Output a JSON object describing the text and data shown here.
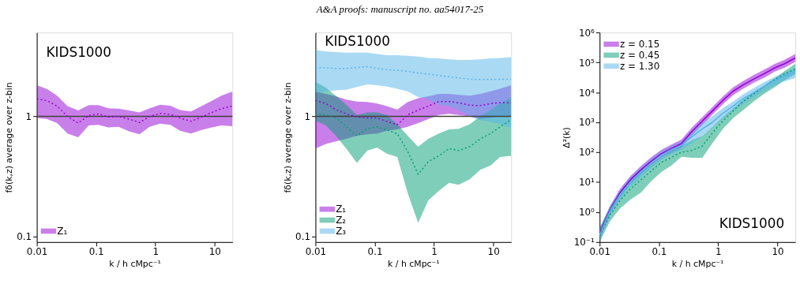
{
  "chart_data": [
    {
      "type": "line",
      "x": [
        0.01,
        0.015,
        0.022,
        0.033,
        0.05,
        0.075,
        0.11,
        0.16,
        0.24,
        0.36,
        0.54,
        0.8,
        1.2,
        1.8,
        2.6,
        4,
        6,
        9,
        13,
        20
      ],
      "series": [
        {
          "name": "Z₁",
          "color": "#9400d3",
          "values": [
            1.4,
            1.35,
            1.22,
            1.0,
            0.88,
            1.02,
            1.05,
            0.99,
            1.0,
            0.95,
            0.89,
            1.0,
            1.06,
            1.04,
            0.97,
            0.91,
            0.99,
            1.08,
            1.16,
            1.22
          ],
          "lower": [
            0.97,
            0.95,
            0.88,
            0.72,
            0.67,
            0.84,
            0.85,
            0.81,
            0.82,
            0.75,
            0.71,
            0.82,
            0.87,
            0.85,
            0.76,
            0.72,
            0.77,
            0.81,
            0.84,
            0.83
          ],
          "upper": [
            1.82,
            1.69,
            1.49,
            1.22,
            1.12,
            1.24,
            1.24,
            1.17,
            1.16,
            1.12,
            1.08,
            1.17,
            1.25,
            1.23,
            1.13,
            1.1,
            1.22,
            1.35,
            1.49,
            1.61
          ]
        }
      ],
      "xlim": [
        0.01,
        20
      ],
      "ylim": [
        0.09,
        5
      ],
      "xticks": [
        0.01,
        0.1,
        1,
        10
      ],
      "yticks": [
        0.1,
        1
      ],
      "log": "xy",
      "grid": false,
      "xlabel": "k / h cMpc⁻¹",
      "ylabel": "fδ(k,z) average over z-bin",
      "annotations": [
        "KIDS1000",
        "A&A proofs: manuscript no. aa54017-25"
      ],
      "ref_lines": [
        {
          "axis": "y",
          "value": 1,
          "color": "#404040"
        }
      ],
      "legend": "bottom left",
      "line_style": "dotted"
    },
    {
      "type": "line",
      "x": [
        0.01,
        0.015,
        0.022,
        0.033,
        0.05,
        0.075,
        0.11,
        0.16,
        0.24,
        0.36,
        0.54,
        0.8,
        1.2,
        1.8,
        2.6,
        4,
        6,
        9,
        13,
        20
      ],
      "series": [
        {
          "name": "Z₁",
          "color": "#9400d3",
          "values": [
            1.36,
            1.28,
            1.14,
            1.05,
            0.99,
            0.97,
            0.97,
            0.91,
            0.85,
            1.03,
            1.13,
            1.22,
            1.33,
            1.33,
            1.3,
            1.24,
            1.23,
            1.28,
            1.3,
            1.3
          ],
          "lower": [
            0.54,
            0.59,
            0.62,
            0.65,
            0.69,
            0.71,
            0.72,
            0.76,
            0.78,
            0.82,
            0.88,
            0.95,
            1.03,
            1.05,
            1.03,
            1.0,
            0.95,
            0.97,
            1.0,
            0.99
          ],
          "upper": [
            1.61,
            1.54,
            1.47,
            1.38,
            1.33,
            1.32,
            1.28,
            1.22,
            1.14,
            1.32,
            1.42,
            1.47,
            1.54,
            1.54,
            1.51,
            1.49,
            1.54,
            1.62,
            1.7,
            1.82
          ]
        },
        {
          "name": "Z₂",
          "color": "#009e73",
          "values": [
            1.05,
            1.03,
            0.98,
            0.82,
            0.69,
            0.79,
            0.82,
            0.77,
            0.72,
            0.51,
            0.33,
            0.42,
            0.47,
            0.54,
            0.52,
            0.56,
            0.65,
            0.72,
            0.82,
            0.94
          ],
          "lower": [
            0.92,
            0.84,
            0.69,
            0.54,
            0.41,
            0.52,
            0.55,
            0.49,
            0.46,
            0.23,
            0.13,
            0.2,
            0.24,
            0.28,
            0.27,
            0.3,
            0.36,
            0.39,
            0.46,
            0.47
          ],
          "upper": [
            1.94,
            1.73,
            1.49,
            1.25,
            1.03,
            1.08,
            1.08,
            1.03,
            0.86,
            0.69,
            0.56,
            0.65,
            0.72,
            0.78,
            0.79,
            0.86,
            1.0,
            1.13,
            1.28,
            1.44
          ]
        },
        {
          "name": "Z₃",
          "color": "#56b4e9",
          "values": [
            2.55,
            2.54,
            2.51,
            2.51,
            2.55,
            2.6,
            2.51,
            2.45,
            2.42,
            2.37,
            2.3,
            2.25,
            2.19,
            2.14,
            2.09,
            2.04,
            2.03,
            2.03,
            2.04,
            2.04
          ],
          "lower": [
            1.57,
            1.61,
            1.65,
            1.67,
            1.76,
            1.85,
            1.82,
            1.77,
            1.7,
            1.61,
            1.45,
            1.38,
            1.25,
            1.22,
            1.13,
            1.0,
            0.93,
            0.9,
            0.86,
            0.8
          ],
          "upper": [
            3.56,
            3.47,
            3.43,
            3.39,
            3.39,
            3.39,
            3.31,
            3.23,
            3.23,
            3.2,
            3.15,
            3.07,
            3.04,
            2.99,
            2.95,
            2.95,
            2.99,
            3.04,
            3.07,
            3.11
          ]
        }
      ],
      "xlim": [
        0.01,
        20
      ],
      "ylim": [
        0.09,
        5
      ],
      "xticks": [
        0.01,
        0.1,
        1,
        10
      ],
      "yticks": [
        0.1,
        1
      ],
      "log": "xy",
      "grid": false,
      "xlabel": "k / h cMpc⁻¹",
      "ylabel": "fδ(k,z) average over z-bin",
      "annotations": [
        "KIDS1000"
      ],
      "ref_lines": [
        {
          "axis": "y",
          "value": 1,
          "color": "#404040"
        }
      ],
      "legend": "bottom left",
      "line_style": "dotted"
    },
    {
      "type": "line",
      "x": [
        0.01,
        0.015,
        0.022,
        0.033,
        0.05,
        0.075,
        0.11,
        0.16,
        0.24,
        0.36,
        0.54,
        0.8,
        1.2,
        1.8,
        2.6,
        4,
        6,
        9,
        13,
        20
      ],
      "series": [
        {
          "name": "z = 0.15",
          "color": "#9400d3",
          "line_style": "solid",
          "values": [
            0.19,
            1.2,
            4.4,
            12,
            26,
            51,
            89,
            132,
            195,
            490,
            1100,
            2400,
            5400,
            11000,
            17400,
            28000,
            42000,
            66000,
            89000,
            141000
          ],
          "lower": [
            0.13,
            0.9,
            3.3,
            9,
            19,
            38,
            66,
            98,
            144,
            360,
            810,
            1800,
            4000,
            8100,
            12900,
            21000,
            31000,
            49000,
            66000,
            104000
          ],
          "upper": [
            0.28,
            1.6,
            5.9,
            16,
            35,
            69,
            120,
            178,
            263,
            660,
            1480,
            3200,
            7300,
            14800,
            23500,
            38000,
            57000,
            89000,
            120000,
            190000
          ]
        },
        {
          "name": "z = 0.45",
          "color": "#009e73",
          "line_style": "dotted",
          "values": [
            0.16,
            0.8,
            2.4,
            5.9,
            12,
            24,
            46,
            66,
            100,
            115,
            160,
            440,
            1100,
            2400,
            4900,
            8900,
            16000,
            27000,
            40000,
            60000
          ],
          "lower": [
            0.1,
            0.5,
            1.3,
            2.6,
            4.5,
            11,
            22,
            35,
            70,
            65,
            65,
            200,
            600,
            1400,
            2500,
            5000,
            9000,
            15000,
            25000,
            40000
          ],
          "upper": [
            0.3,
            1.5,
            4.5,
            11,
            22,
            40,
            70,
            110,
            160,
            250,
            350,
            700,
            1500,
            3000,
            5500,
            10000,
            17000,
            30000,
            50000,
            90000
          ]
        },
        {
          "name": "z = 1.30",
          "color": "#56b4e9",
          "line_style": "solid",
          "values": [
            0.17,
            1.1,
            3.8,
            10,
            22,
            45,
            80,
            120,
            170,
            330,
            600,
            1000,
            2000,
            3500,
            6000,
            10000,
            16000,
            25000,
            35000,
            50000
          ],
          "lower": [
            0.11,
            0.75,
            2.6,
            7,
            15,
            30,
            55,
            85,
            120,
            200,
            350,
            650,
            1300,
            2400,
            4000,
            7000,
            11000,
            17000,
            23000,
            30000
          ],
          "upper": [
            0.25,
            1.6,
            5.5,
            15,
            32,
            65,
            110,
            165,
            230,
            550,
            1000,
            1600,
            3000,
            5000,
            8500,
            14000,
            22000,
            33000,
            45000,
            65000
          ]
        }
      ],
      "xlim": [
        0.01,
        20
      ],
      "ylim": [
        0.1,
        1000000
      ],
      "xticks": [
        0.01,
        0.1,
        1,
        10
      ],
      "yticks": [
        {
          "value": 0.1,
          "label": "10⁻¹"
        },
        {
          "value": 1,
          "label": "10⁰"
        },
        {
          "value": 10,
          "label": "10¹"
        },
        {
          "value": 100,
          "label": "10²"
        },
        {
          "value": 1000,
          "label": "10³"
        },
        {
          "value": 10000,
          "label": "10⁴"
        },
        {
          "value": 100000,
          "label": "10⁵"
        },
        {
          "value": 1000000,
          "label": "10⁶"
        }
      ],
      "log": "xy",
      "grid": false,
      "xlabel": "k / h cMpc⁻¹",
      "ylabel": "Δ²(k)",
      "annotations": [
        "KIDS1000"
      ],
      "legend": "top left"
    }
  ]
}
